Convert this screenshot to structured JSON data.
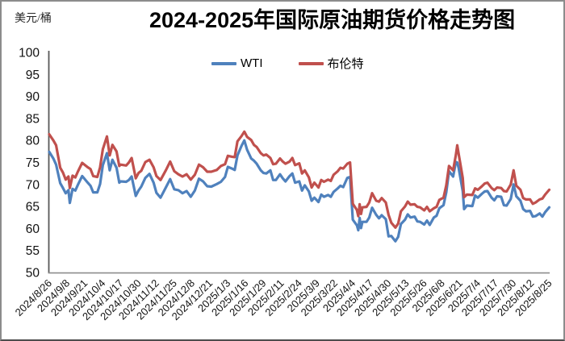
{
  "page": {
    "title": "2024-2025年国际原油期货价格走势图",
    "unit_label": "美元/桶"
  },
  "legend": {
    "items": [
      {
        "label": "WTI",
        "color": "#4F81BD"
      },
      {
        "label": "布伦特",
        "color": "#C0504D"
      }
    ]
  },
  "chart_data": {
    "type": "line",
    "title": "2024-2025年国际原油期货价格走势图",
    "ylabel": "美元/桶",
    "xlabel": "",
    "ylim": [
      50,
      100
    ],
    "ytick_step": 5,
    "grid": false,
    "legend_position": "top",
    "x_domain_days": [
      0,
      364
    ],
    "x_tick_days": [
      0,
      13,
      26,
      39,
      52,
      65,
      78,
      91,
      104,
      117,
      130,
      143,
      156,
      169,
      182,
      195,
      208,
      221,
      234,
      247,
      260,
      273,
      286,
      299,
      312,
      325,
      338,
      351,
      364
    ],
    "x_tick_labels": [
      "2024/8/26",
      "2024/9/8",
      "2024/9/21",
      "2024/10/4",
      "2024/10/17",
      "2024/10/30",
      "2024/11/12",
      "2024/11/25",
      "2024/12/8",
      "2024/12/21",
      "2025/1/3",
      "2025/1/16",
      "2025/1/29",
      "2025/2/11",
      "2025/2/24",
      "2025/3/9",
      "2025/3/22",
      "2025/4/4",
      "2025/4/17",
      "2025/4/30",
      "2025/5/13",
      "2025/5/26",
      "2025/6/8",
      "2025/6/21",
      "2025/7/4",
      "2025/7/17",
      "2025/7/30",
      "2025/8/12",
      "2025/8/25"
    ],
    "series": [
      {
        "name": "WTI",
        "color": "#4F81BD",
        "points": [
          [
            0,
            77.4
          ],
          [
            3,
            75.9
          ],
          [
            5,
            74.5
          ],
          [
            8,
            70.3
          ],
          [
            10,
            69.2
          ],
          [
            12,
            68.0
          ],
          [
            14,
            68.7
          ],
          [
            15,
            65.8
          ],
          [
            17,
            69.0
          ],
          [
            19,
            68.6
          ],
          [
            21,
            70.0
          ],
          [
            24,
            71.9
          ],
          [
            28,
            70.4
          ],
          [
            30,
            69.7
          ],
          [
            32,
            68.2
          ],
          [
            35,
            68.2
          ],
          [
            37,
            70.1
          ],
          [
            39,
            74.4
          ],
          [
            42,
            77.1
          ],
          [
            44,
            73.2
          ],
          [
            46,
            75.6
          ],
          [
            49,
            73.8
          ],
          [
            51,
            70.4
          ],
          [
            52,
            70.7
          ],
          [
            56,
            70.6
          ],
          [
            58,
            71.0
          ],
          [
            60,
            71.8
          ],
          [
            63,
            67.4
          ],
          [
            65,
            68.6
          ],
          [
            67,
            69.5
          ],
          [
            70,
            71.5
          ],
          [
            73,
            72.4
          ],
          [
            76,
            70.4
          ],
          [
            78,
            68.1
          ],
          [
            81,
            67.0
          ],
          [
            85,
            69.4
          ],
          [
            88,
            71.2
          ],
          [
            91,
            68.9
          ],
          [
            94,
            68.7
          ],
          [
            97,
            68.0
          ],
          [
            100,
            68.5
          ],
          [
            103,
            67.2
          ],
          [
            106,
            68.6
          ],
          [
            109,
            71.3
          ],
          [
            112,
            70.7
          ],
          [
            115,
            69.6
          ],
          [
            118,
            69.5
          ],
          [
            122,
            70.1
          ],
          [
            125,
            70.6
          ],
          [
            128,
            71.7
          ],
          [
            130,
            74.0
          ],
          [
            133,
            73.6
          ],
          [
            135,
            73.3
          ],
          [
            137,
            76.6
          ],
          [
            140,
            78.8
          ],
          [
            142,
            80.0
          ],
          [
            144,
            77.9
          ],
          [
            147,
            75.9
          ],
          [
            149,
            75.4
          ],
          [
            151,
            74.7
          ],
          [
            154,
            73.2
          ],
          [
            156,
            72.6
          ],
          [
            158,
            72.5
          ],
          [
            161,
            73.2
          ],
          [
            163,
            71.0
          ],
          [
            165,
            71.0
          ],
          [
            168,
            72.3
          ],
          [
            170,
            71.4
          ],
          [
            172,
            70.7
          ],
          [
            175,
            71.9
          ],
          [
            177,
            72.5
          ],
          [
            179,
            70.4
          ],
          [
            182,
            70.7
          ],
          [
            184,
            68.6
          ],
          [
            186,
            69.8
          ],
          [
            189,
            68.4
          ],
          [
            191,
            66.3
          ],
          [
            193,
            67.0
          ],
          [
            196,
            66.0
          ],
          [
            198,
            67.7
          ],
          [
            200,
            67.2
          ],
          [
            203,
            67.6
          ],
          [
            205,
            67.2
          ],
          [
            207,
            68.3
          ],
          [
            210,
            69.1
          ],
          [
            212,
            69.7
          ],
          [
            214,
            69.4
          ],
          [
            217,
            71.5
          ],
          [
            219,
            71.7
          ],
          [
            221,
            62.0
          ],
          [
            224,
            60.7
          ],
          [
            225,
            59.6
          ],
          [
            226,
            62.4
          ],
          [
            227,
            60.1
          ],
          [
            228,
            61.5
          ],
          [
            231,
            61.5
          ],
          [
            233,
            62.5
          ],
          [
            235,
            64.7
          ],
          [
            238,
            63.1
          ],
          [
            240,
            62.3
          ],
          [
            242,
            63.0
          ],
          [
            245,
            62.1
          ],
          [
            247,
            58.2
          ],
          [
            249,
            58.3
          ],
          [
            252,
            57.1
          ],
          [
            254,
            58.1
          ],
          [
            256,
            61.0
          ],
          [
            259,
            62.0
          ],
          [
            261,
            63.2
          ],
          [
            263,
            62.5
          ],
          [
            266,
            62.7
          ],
          [
            268,
            61.6
          ],
          [
            270,
            61.5
          ],
          [
            273,
            60.9
          ],
          [
            275,
            61.8
          ],
          [
            277,
            60.8
          ],
          [
            280,
            62.5
          ],
          [
            282,
            62.9
          ],
          [
            284,
            64.6
          ],
          [
            287,
            65.3
          ],
          [
            289,
            68.2
          ],
          [
            291,
            73.0
          ],
          [
            294,
            71.8
          ],
          [
            296,
            75.1
          ],
          [
            297,
            75.0
          ],
          [
            298,
            73.8
          ],
          [
            301,
            68.5
          ],
          [
            302,
            64.4
          ],
          [
            304,
            65.2
          ],
          [
            308,
            65.1
          ],
          [
            310,
            67.5
          ],
          [
            312,
            67.0
          ],
          [
            315,
            67.9
          ],
          [
            317,
            68.4
          ],
          [
            319,
            68.5
          ],
          [
            322,
            67.0
          ],
          [
            324,
            66.4
          ],
          [
            326,
            67.3
          ],
          [
            329,
            67.2
          ],
          [
            331,
            65.3
          ],
          [
            333,
            65.2
          ],
          [
            336,
            66.7
          ],
          [
            338,
            70.0
          ],
          [
            340,
            67.3
          ],
          [
            343,
            66.3
          ],
          [
            345,
            64.4
          ],
          [
            347,
            63.9
          ],
          [
            350,
            64.0
          ],
          [
            352,
            62.7
          ],
          [
            354,
            62.8
          ],
          [
            357,
            63.4
          ],
          [
            359,
            62.7
          ],
          [
            361,
            63.7
          ],
          [
            364,
            64.8
          ]
        ]
      },
      {
        "name": "布伦特",
        "color": "#C0504D",
        "points": [
          [
            0,
            81.4
          ],
          [
            3,
            80.0
          ],
          [
            5,
            78.9
          ],
          [
            8,
            73.8
          ],
          [
            10,
            72.7
          ],
          [
            12,
            71.1
          ],
          [
            14,
            71.8
          ],
          [
            15,
            69.2
          ],
          [
            17,
            72.0
          ],
          [
            19,
            71.6
          ],
          [
            21,
            73.0
          ],
          [
            24,
            74.9
          ],
          [
            28,
            73.9
          ],
          [
            30,
            73.5
          ],
          [
            32,
            71.9
          ],
          [
            35,
            71.7
          ],
          [
            37,
            73.9
          ],
          [
            39,
            78.0
          ],
          [
            42,
            80.9
          ],
          [
            44,
            76.6
          ],
          [
            46,
            79.0
          ],
          [
            49,
            77.5
          ],
          [
            51,
            74.2
          ],
          [
            52,
            74.5
          ],
          [
            56,
            74.3
          ],
          [
            58,
            75.0
          ],
          [
            60,
            76.0
          ],
          [
            63,
            71.4
          ],
          [
            65,
            72.6
          ],
          [
            67,
            73.1
          ],
          [
            70,
            75.1
          ],
          [
            73,
            75.6
          ],
          [
            76,
            73.9
          ],
          [
            78,
            71.9
          ],
          [
            81,
            71.0
          ],
          [
            85,
            73.3
          ],
          [
            88,
            75.2
          ],
          [
            91,
            73.0
          ],
          [
            94,
            72.3
          ],
          [
            97,
            71.8
          ],
          [
            100,
            72.3
          ],
          [
            103,
            71.1
          ],
          [
            106,
            72.2
          ],
          [
            109,
            74.5
          ],
          [
            112,
            73.9
          ],
          [
            115,
            72.9
          ],
          [
            118,
            72.9
          ],
          [
            122,
            73.3
          ],
          [
            125,
            74.2
          ],
          [
            128,
            74.6
          ],
          [
            130,
            76.5
          ],
          [
            133,
            76.3
          ],
          [
            135,
            76.2
          ],
          [
            137,
            79.8
          ],
          [
            140,
            81.0
          ],
          [
            142,
            82.0
          ],
          [
            144,
            80.8
          ],
          [
            147,
            80.1
          ],
          [
            149,
            79.0
          ],
          [
            151,
            78.5
          ],
          [
            154,
            77.1
          ],
          [
            156,
            76.6
          ],
          [
            158,
            76.8
          ],
          [
            161,
            76.0
          ],
          [
            163,
            74.6
          ],
          [
            165,
            74.7
          ],
          [
            168,
            75.9
          ],
          [
            170,
            75.2
          ],
          [
            172,
            74.7
          ],
          [
            175,
            75.2
          ],
          [
            177,
            76.0
          ],
          [
            179,
            74.4
          ],
          [
            182,
            74.8
          ],
          [
            184,
            72.5
          ],
          [
            186,
            73.2
          ],
          [
            189,
            71.6
          ],
          [
            191,
            69.3
          ],
          [
            193,
            70.4
          ],
          [
            196,
            69.3
          ],
          [
            198,
            71.0
          ],
          [
            200,
            70.6
          ],
          [
            203,
            71.1
          ],
          [
            205,
            70.8
          ],
          [
            207,
            72.2
          ],
          [
            210,
            73.0
          ],
          [
            212,
            73.8
          ],
          [
            214,
            73.6
          ],
          [
            217,
            74.7
          ],
          [
            219,
            75.0
          ],
          [
            221,
            65.6
          ],
          [
            224,
            64.2
          ],
          [
            225,
            62.8
          ],
          [
            226,
            65.5
          ],
          [
            227,
            63.3
          ],
          [
            228,
            64.8
          ],
          [
            231,
            64.9
          ],
          [
            233,
            65.9
          ],
          [
            235,
            68.0
          ],
          [
            238,
            66.3
          ],
          [
            240,
            66.1
          ],
          [
            242,
            66.9
          ],
          [
            245,
            65.9
          ],
          [
            247,
            63.1
          ],
          [
            249,
            61.3
          ],
          [
            252,
            60.2
          ],
          [
            254,
            61.1
          ],
          [
            256,
            63.9
          ],
          [
            259,
            65.0
          ],
          [
            261,
            66.1
          ],
          [
            263,
            65.4
          ],
          [
            266,
            65.5
          ],
          [
            268,
            64.9
          ],
          [
            270,
            64.8
          ],
          [
            273,
            64.1
          ],
          [
            275,
            64.9
          ],
          [
            277,
            63.9
          ],
          [
            280,
            64.6
          ],
          [
            282,
            64.9
          ],
          [
            284,
            66.5
          ],
          [
            287,
            67.0
          ],
          [
            289,
            69.8
          ],
          [
            291,
            74.2
          ],
          [
            294,
            73.2
          ],
          [
            296,
            76.7
          ],
          [
            297,
            78.9
          ],
          [
            298,
            77.0
          ],
          [
            301,
            71.5
          ],
          [
            302,
            67.1
          ],
          [
            304,
            67.7
          ],
          [
            308,
            67.6
          ],
          [
            310,
            69.1
          ],
          [
            312,
            68.8
          ],
          [
            315,
            69.6
          ],
          [
            317,
            70.2
          ],
          [
            319,
            70.4
          ],
          [
            322,
            69.2
          ],
          [
            324,
            68.7
          ],
          [
            326,
            69.3
          ],
          [
            329,
            69.2
          ],
          [
            331,
            68.5
          ],
          [
            333,
            68.4
          ],
          [
            336,
            70.0
          ],
          [
            338,
            73.2
          ],
          [
            340,
            69.7
          ],
          [
            343,
            68.8
          ],
          [
            345,
            66.9
          ],
          [
            347,
            66.6
          ],
          [
            350,
            66.6
          ],
          [
            352,
            65.6
          ],
          [
            354,
            65.9
          ],
          [
            357,
            66.6
          ],
          [
            359,
            66.8
          ],
          [
            361,
            67.7
          ],
          [
            364,
            68.8
          ]
        ]
      }
    ]
  }
}
